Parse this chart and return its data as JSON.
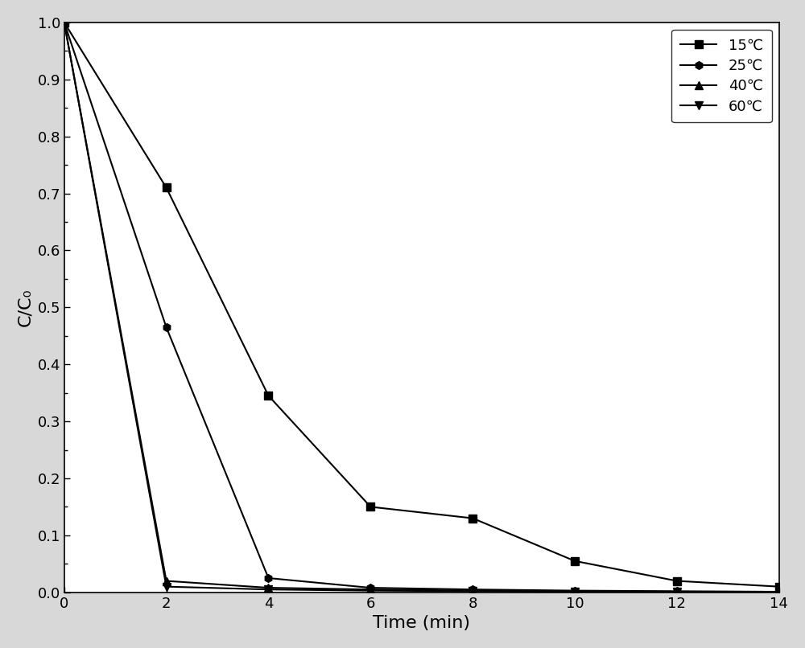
{
  "title": "",
  "xlabel": "Time (min)",
  "ylabel": "C/C₀",
  "xlim": [
    0,
    14
  ],
  "ylim": [
    0.0,
    1.0
  ],
  "xticks": [
    0,
    2,
    4,
    6,
    8,
    10,
    12,
    14
  ],
  "yticks": [
    0.0,
    0.1,
    0.2,
    0.3,
    0.4,
    0.5,
    0.6,
    0.7,
    0.8,
    0.9,
    1.0
  ],
  "series": [
    {
      "label": "15℃",
      "x": [
        0,
        2,
        4,
        6,
        8,
        10,
        12,
        14
      ],
      "y": [
        1.0,
        0.71,
        0.345,
        0.15,
        0.13,
        0.055,
        0.02,
        0.01
      ],
      "marker": "s",
      "color": "#000000",
      "linestyle": "-",
      "markersize": 7
    },
    {
      "label": "25℃",
      "x": [
        0,
        2,
        4,
        6,
        8,
        10,
        12,
        14
      ],
      "y": [
        1.0,
        0.465,
        0.025,
        0.008,
        0.005,
        0.003,
        0.002,
        0.001
      ],
      "marker": "h",
      "color": "#000000",
      "linestyle": "-",
      "markersize": 7
    },
    {
      "label": "40℃",
      "x": [
        0,
        2,
        4,
        6,
        8,
        10,
        12,
        14
      ],
      "y": [
        1.0,
        0.02,
        0.008,
        0.005,
        0.003,
        0.002,
        0.001,
        0.001
      ],
      "marker": "^",
      "color": "#000000",
      "linestyle": "-",
      "markersize": 7
    },
    {
      "label": "60℃",
      "x": [
        0,
        2,
        4,
        6,
        8,
        10,
        12,
        14
      ],
      "y": [
        1.0,
        0.01,
        0.005,
        0.003,
        0.002,
        0.001,
        0.001,
        0.001
      ],
      "marker": "v",
      "color": "#000000",
      "linestyle": "-",
      "markersize": 7
    }
  ],
  "legend_loc": "upper right",
  "plot_bg_color": "#ffffff",
  "fig_bg_color": "#d8d8d8",
  "line_color": "#000000"
}
